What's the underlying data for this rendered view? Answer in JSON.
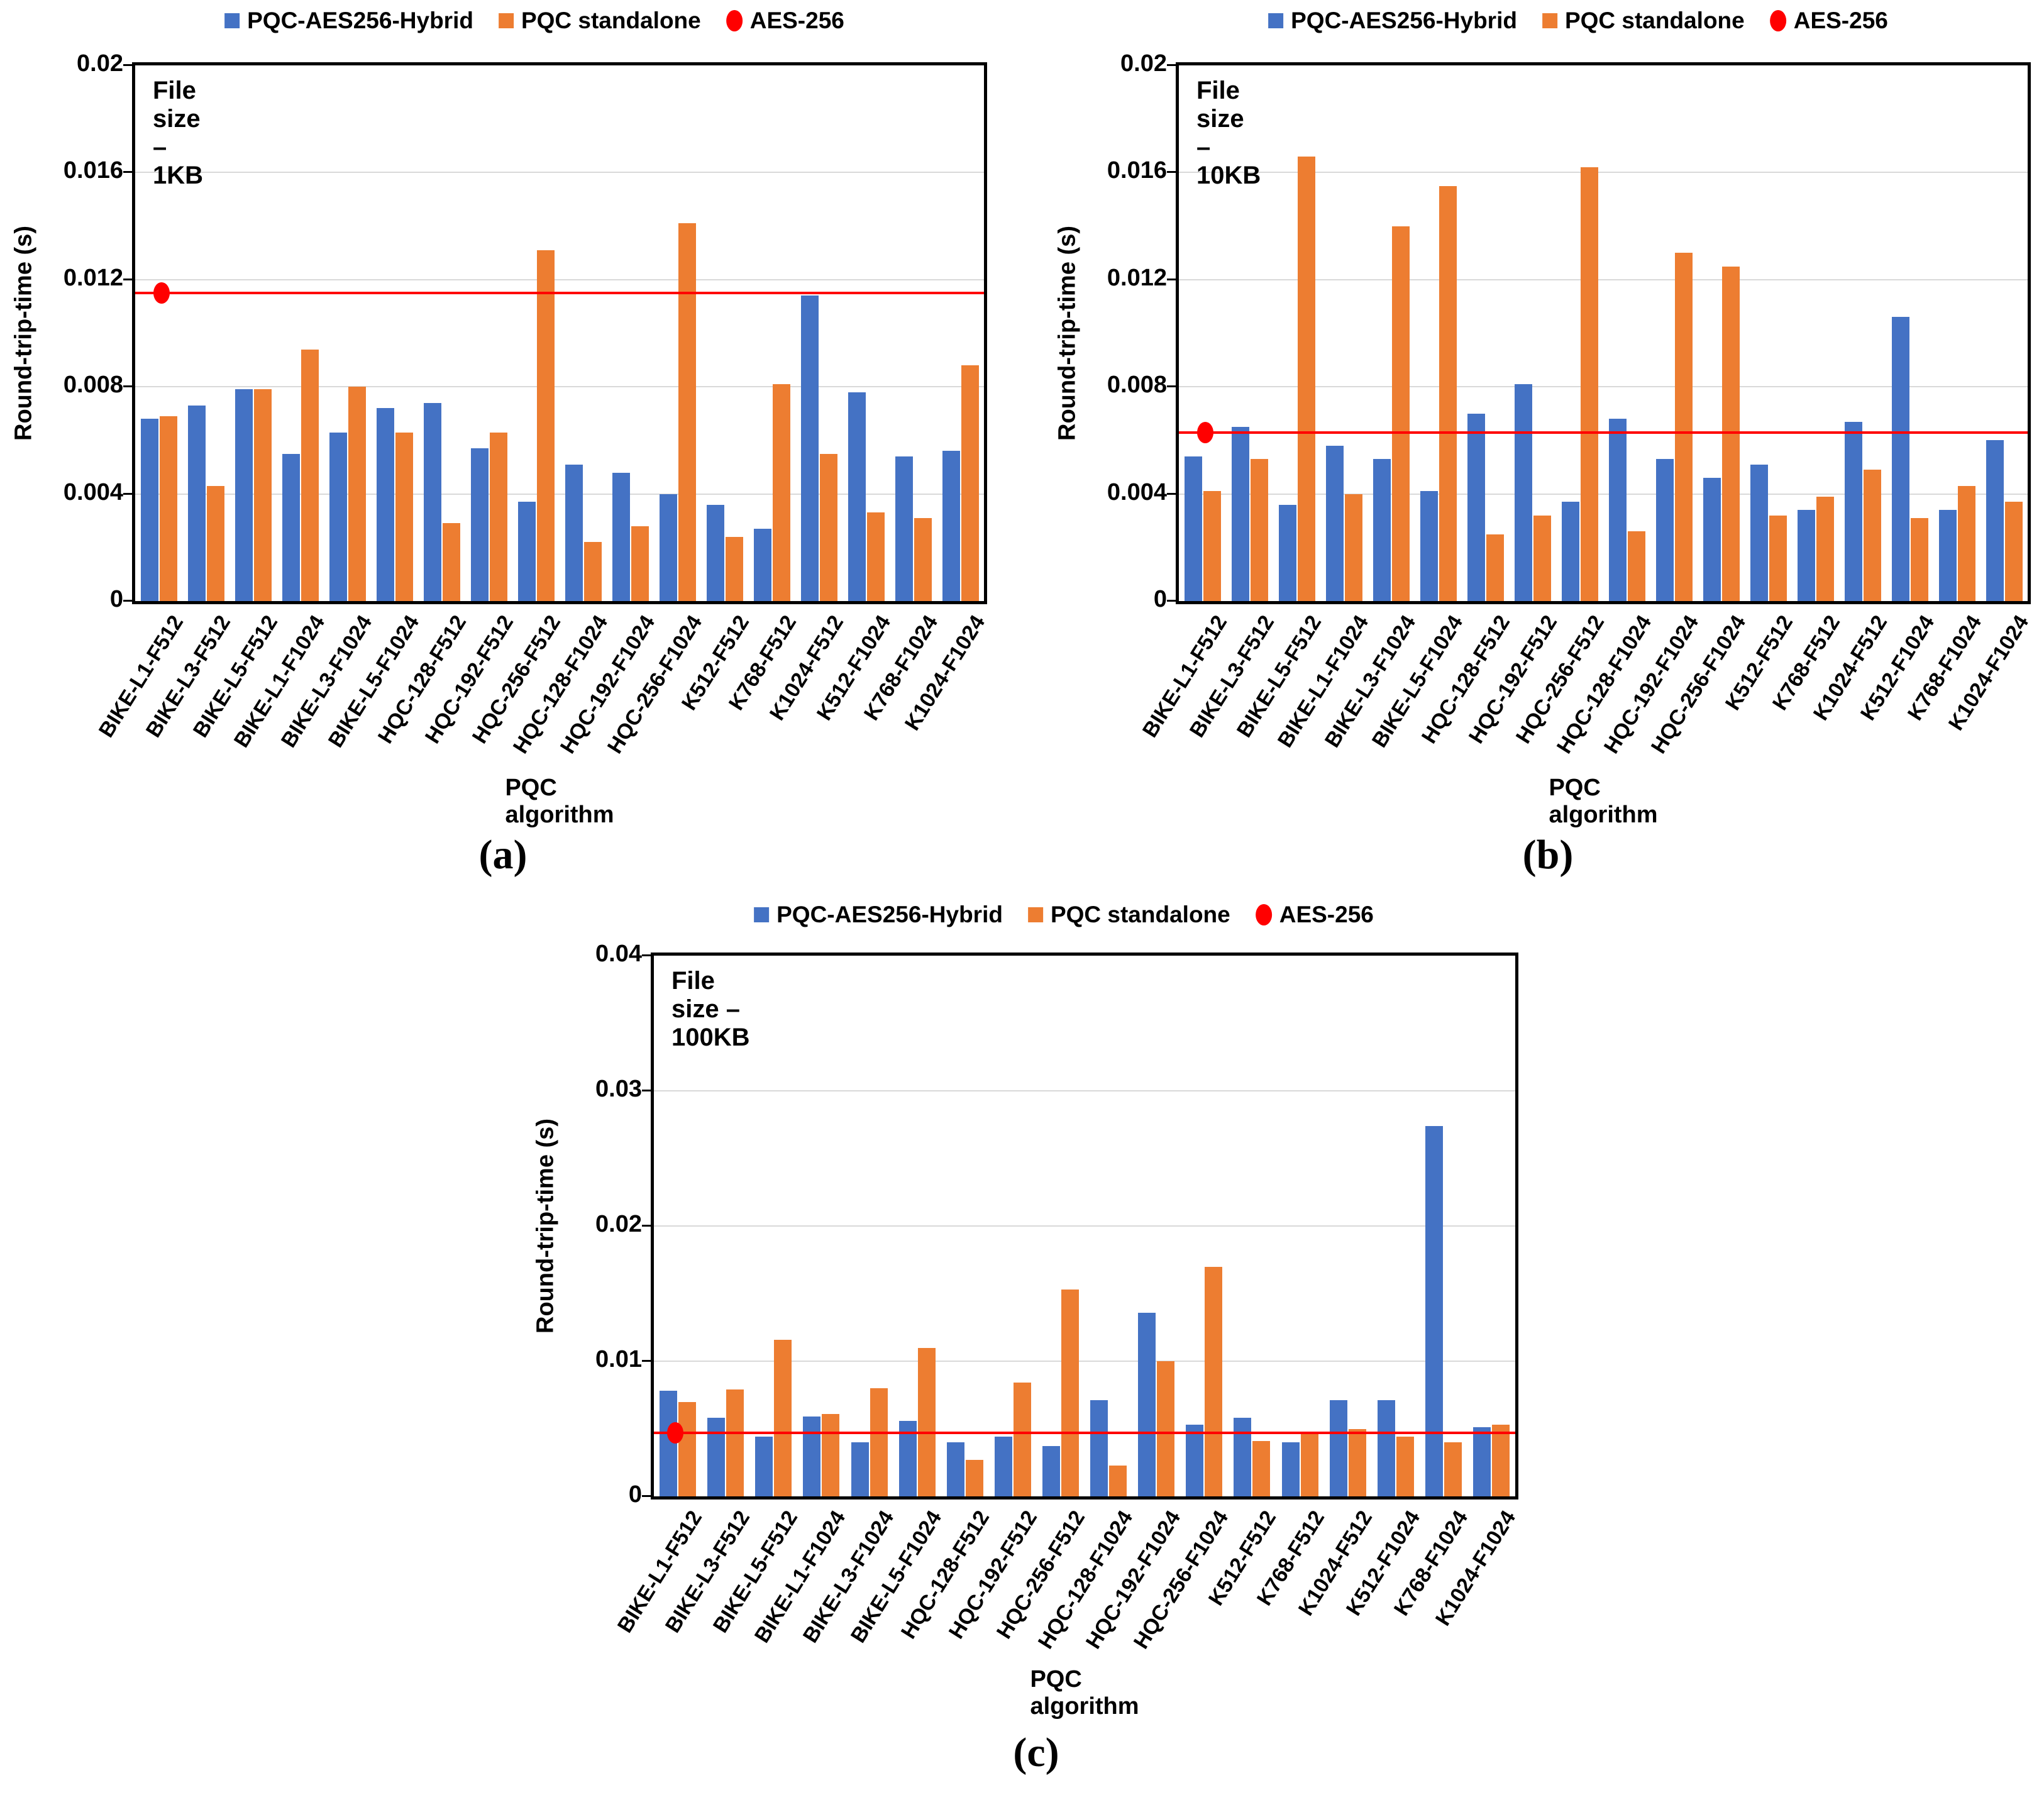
{
  "figure": {
    "y_axis_label": "Round-trip-time (s)",
    "x_axis_label": "PQC algorithm",
    "legend": [
      {
        "label": "PQC-AES256-Hybrid",
        "marker": "square",
        "color": "#4472C4"
      },
      {
        "label": "PQC standalone",
        "marker": "square",
        "color": "#ED7D31"
      },
      {
        "label": "AES-256",
        "marker": "circle",
        "color": "#FF0000"
      }
    ],
    "colors": {
      "hybrid": "#4472C4",
      "standalone": "#ED7D31",
      "aes": "#FF0000",
      "gridline": "#D9D9D9",
      "axis": "#000000",
      "background": "#FFFFFF"
    }
  },
  "chart_data": [
    {
      "type": "bar",
      "panel": "a",
      "caption": "(a)",
      "title_annotation": "File size – 1KB",
      "xlabel": "PQC algorithm",
      "ylabel": "Round-trip-time (s)",
      "ylim": [
        0,
        0.02
      ],
      "yticks": [
        0,
        0.004,
        0.008,
        0.012,
        0.016,
        0.02
      ],
      "ytick_labels": [
        "0",
        "0.004",
        "0.008",
        "0.012",
        "0.016",
        "0.02"
      ],
      "grid": true,
      "legend_position": "top",
      "categories": [
        "BIKE-L1-F512",
        "BIKE-L3-F512",
        "BIKE-L5-F512",
        "BIKE-L1-F1024",
        "BIKE-L3-F1024",
        "BIKE-L5-F1024",
        "HQC-128-F512",
        "HQC-192-F512",
        "HQC-256-F512",
        "HQC-128-F1024",
        "HQC-192-F1024",
        "HQC-256-F1024",
        "K512-F512",
        "K768-F512",
        "K1024-F512",
        "K512-F1024",
        "K768-F1024",
        "K1024-F1024"
      ],
      "series": [
        {
          "name": "PQC-AES256-Hybrid",
          "color": "#4472C4",
          "values": [
            0.0068,
            0.0073,
            0.0079,
            0.0055,
            0.0063,
            0.0072,
            0.0074,
            0.0057,
            0.0037,
            0.0051,
            0.0048,
            0.004,
            0.0036,
            0.0027,
            0.0114,
            0.0078,
            0.0054,
            0.0056
          ]
        },
        {
          "name": "PQC standalone",
          "color": "#ED7D31",
          "values": [
            0.0069,
            0.0043,
            0.0079,
            0.0094,
            0.008,
            0.0063,
            0.0029,
            0.0063,
            0.0131,
            0.0022,
            0.0028,
            0.0141,
            0.0024,
            0.0081,
            0.0055,
            0.0033,
            0.0031,
            0.0088
          ]
        }
      ],
      "aes256_line": {
        "label": "AES-256",
        "value": 0.0115,
        "color": "#FF0000"
      }
    },
    {
      "type": "bar",
      "panel": "b",
      "caption": "(b)",
      "title_annotation": "File size – 10KB",
      "xlabel": "PQC algorithm",
      "ylabel": "Round-trip-time (s)",
      "ylim": [
        0,
        0.02
      ],
      "yticks": [
        0,
        0.004,
        0.008,
        0.012,
        0.016,
        0.02
      ],
      "ytick_labels": [
        "0",
        "0.004",
        "0.008",
        "0.012",
        "0.016",
        "0.02"
      ],
      "grid": true,
      "legend_position": "top",
      "categories": [
        "BIKE-L1-F512",
        "BIKE-L3-F512",
        "BIKE-L5-F512",
        "BIKE-L1-F1024",
        "BIKE-L3-F1024",
        "BIKE-L5-F1024",
        "HQC-128-F512",
        "HQC-192-F512",
        "HQC-256-F512",
        "HQC-128-F1024",
        "HQC-192-F1024",
        "HQC-256-F1024",
        "K512-F512",
        "K768-F512",
        "K1024-F512",
        "K512-F1024",
        "K768-F1024",
        "K1024-F1024"
      ],
      "series": [
        {
          "name": "PQC-AES256-Hybrid",
          "color": "#4472C4",
          "values": [
            0.0054,
            0.0065,
            0.0036,
            0.0058,
            0.0053,
            0.0041,
            0.007,
            0.0081,
            0.0037,
            0.0068,
            0.0053,
            0.0046,
            0.0051,
            0.0034,
            0.0067,
            0.0106,
            0.0034,
            0.006
          ]
        },
        {
          "name": "PQC standalone",
          "color": "#ED7D31",
          "values": [
            0.0041,
            0.0053,
            0.0166,
            0.004,
            0.014,
            0.0155,
            0.0025,
            0.0032,
            0.0162,
            0.0026,
            0.013,
            0.0125,
            0.0032,
            0.0039,
            0.0049,
            0.0031,
            0.0043,
            0.0037
          ]
        }
      ],
      "aes256_line": {
        "label": "AES-256",
        "value": 0.0063,
        "color": "#FF0000"
      }
    },
    {
      "type": "bar",
      "panel": "c",
      "caption": "(c)",
      "title_annotation": "File size – 100KB",
      "xlabel": "PQC algorithm",
      "ylabel": "Round-trip-time (s)",
      "ylim": [
        0,
        0.04
      ],
      "yticks": [
        0,
        0.01,
        0.02,
        0.03,
        0.04
      ],
      "ytick_labels": [
        "0",
        "0.01",
        "0.02",
        "0.03",
        "0.04"
      ],
      "grid": true,
      "legend_position": "top",
      "categories": [
        "BIKE-L1-F512",
        "BIKE-L3-F512",
        "BIKE-L5-F512",
        "BIKE-L1-F1024",
        "BIKE-L3-F1024",
        "BIKE-L5-F1024",
        "HQC-128-F512",
        "HQC-192-F512",
        "HQC-256-F512",
        "HQC-128-F1024",
        "HQC-192-F1024",
        "HQC-256-F1024",
        "K512-F512",
        "K768-F512",
        "K1024-F512",
        "K512-F1024",
        "K768-F1024",
        "K1024-F1024"
      ],
      "series": [
        {
          "name": "PQC-AES256-Hybrid",
          "color": "#4472C4",
          "values": [
            0.0078,
            0.0058,
            0.0044,
            0.0059,
            0.004,
            0.0056,
            0.004,
            0.0044,
            0.0037,
            0.0071,
            0.0136,
            0.0053,
            0.0058,
            0.004,
            0.0071,
            0.0071,
            0.0274,
            0.0051
          ]
        },
        {
          "name": "PQC standalone",
          "color": "#ED7D31",
          "values": [
            0.007,
            0.0079,
            0.0116,
            0.0061,
            0.008,
            0.011,
            0.0027,
            0.0084,
            0.0153,
            0.0023,
            0.01,
            0.017,
            0.0041,
            0.0048,
            0.005,
            0.0044,
            0.004,
            0.0053
          ]
        }
      ],
      "aes256_line": {
        "label": "AES-256",
        "value": 0.0047,
        "color": "#FF0000"
      }
    }
  ]
}
